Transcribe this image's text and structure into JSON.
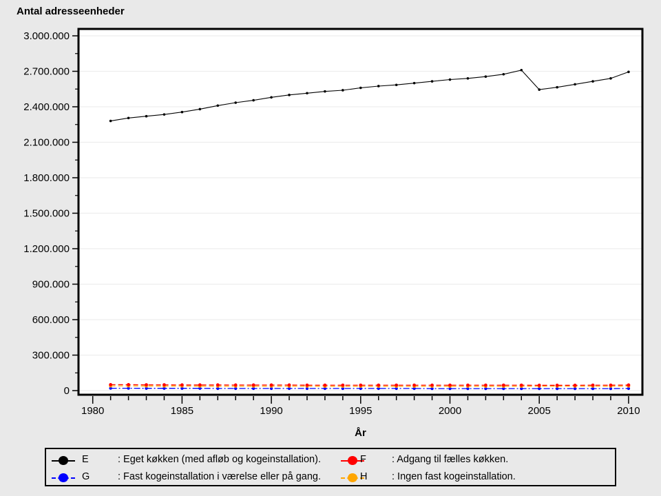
{
  "title": "Antal adresseenheder",
  "colors": {
    "background": "#e9e9e9",
    "plot_background": "#ffffff",
    "grid": "#ededed",
    "axis": "#000000",
    "series_E": "#000000",
    "series_F": "#ff0000",
    "series_G": "#0000ff",
    "series_H": "#ffa500"
  },
  "chart_data": {
    "type": "line",
    "title": "Antal adresseenheder",
    "xlabel": "År",
    "ylabel": "Antal adresseenheder",
    "grid": "horizontal-major-only",
    "legend_position": "bottom-box",
    "xlim": [
      1979.2,
      2010.8
    ],
    "ylim": [
      0,
      3000000
    ],
    "x": [
      1981,
      1982,
      1983,
      1984,
      1985,
      1986,
      1987,
      1988,
      1989,
      1990,
      1991,
      1992,
      1993,
      1994,
      1995,
      1996,
      1997,
      1998,
      1999,
      2000,
      2001,
      2002,
      2003,
      2004,
      2005,
      2006,
      2007,
      2008,
      2009,
      2010
    ],
    "x_ticks_major": [
      1980,
      1985,
      1990,
      1995,
      2000,
      2005,
      2010
    ],
    "x_tick_labels": [
      "1980",
      "1985",
      "1990",
      "1995",
      "2000",
      "2005",
      "2010"
    ],
    "x_ticks_minor_every": 1,
    "y_ticks": [
      {
        "value": 0,
        "label": "0"
      },
      {
        "value": 300000,
        "label": "300.000"
      },
      {
        "value": 600000,
        "label": "600.000"
      },
      {
        "value": 900000,
        "label": "900.000"
      },
      {
        "value": 1200000,
        "label": "1.200.000"
      },
      {
        "value": 1500000,
        "label": "1.500.000"
      },
      {
        "value": 1800000,
        "label": "1.800.000"
      },
      {
        "value": 2100000,
        "label": "2.100.000"
      },
      {
        "value": 2400000,
        "label": "2.400.000"
      },
      {
        "value": 2700000,
        "label": "2.700.000"
      },
      {
        "value": 3000000,
        "label": "3.000.000"
      }
    ],
    "y_minor_tick_step": 150000,
    "series": [
      {
        "name": "E",
        "label": "Eget køkken (med afløb og kogeinstallation).",
        "color": "#000000",
        "style": "solid",
        "values": [
          2280000,
          2305000,
          2320000,
          2335000,
          2355000,
          2380000,
          2410000,
          2435000,
          2455000,
          2480000,
          2500000,
          2515000,
          2530000,
          2540000,
          2560000,
          2575000,
          2585000,
          2600000,
          2615000,
          2630000,
          2640000,
          2655000,
          2675000,
          2710000,
          2545000,
          2565000,
          2590000,
          2615000,
          2640000,
          2695000
        ]
      },
      {
        "name": "F",
        "label": "Adgang til fælles køkken.",
        "color": "#ff0000",
        "style": "dashed",
        "values": [
          50000,
          50000,
          49000,
          49000,
          48000,
          48000,
          48000,
          47000,
          47000,
          47000,
          47000,
          46000,
          46000,
          46000,
          46000,
          46000,
          46000,
          46000,
          46000,
          46000,
          46000,
          46000,
          46000,
          46000,
          45000,
          45000,
          45000,
          46000,
          46000,
          47000
        ]
      },
      {
        "name": "G",
        "label": "Fast kogeinstallation i værelse eller på gang.",
        "color": "#0000ff",
        "style": "dashdot",
        "values": [
          20000,
          20000,
          19000,
          19000,
          19000,
          19000,
          18000,
          18000,
          18000,
          18000,
          18000,
          18000,
          18000,
          18000,
          18000,
          18000,
          18000,
          18000,
          17000,
          17000,
          17000,
          17000,
          17000,
          17000,
          17000,
          17000,
          17000,
          17000,
          17000,
          18000
        ]
      },
      {
        "name": "H",
        "label": "Ingen fast kogeinstallation.",
        "color": "#ffa500",
        "style": "dashed",
        "values": [
          40000,
          40000,
          39000,
          39000,
          39000,
          38000,
          38000,
          38000,
          38000,
          38000,
          38000,
          38000,
          37000,
          37000,
          37000,
          37000,
          37000,
          37000,
          37000,
          37000,
          37000,
          37000,
          37000,
          37000,
          38000,
          38000,
          38000,
          38000,
          38000,
          39000
        ]
      }
    ]
  },
  "legend": {
    "entries": [
      {
        "key": "E",
        "desc": ": Eget køkken (med afløb og kogeinstallation)."
      },
      {
        "key": "F",
        "desc": ": Adgang til fælles køkken."
      },
      {
        "key": "G",
        "desc": ": Fast kogeinstallation i værelse eller på gang."
      },
      {
        "key": "H",
        "desc": ": Ingen fast kogeinstallation."
      }
    ]
  }
}
